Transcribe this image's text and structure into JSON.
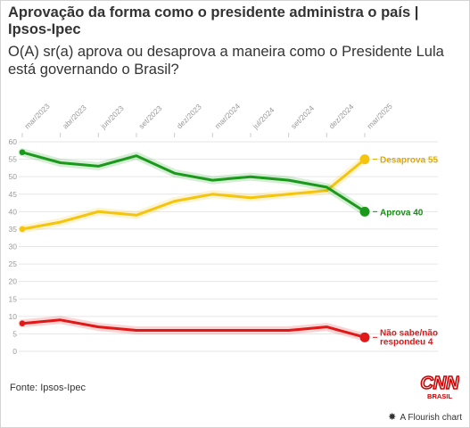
{
  "title": "Aprovação da forma como o presidente administra o país | Ipsos-Ipec",
  "subtitle": "O(A) sr(a) aprova ou desaprova a maneira como o Presidente Lula está governando o Brasil?",
  "source": "Fonte: Ipsos-Ipec",
  "logo": {
    "text": "CNN",
    "sub": "BRASIL",
    "color": "#cc0000"
  },
  "credit": {
    "mark": "✸",
    "text": "A Flourish chart"
  },
  "chart_data": {
    "type": "line",
    "x_labels": [
      "mar/2023",
      "abr/2023",
      "jun/2023",
      "set/2023",
      "dez/2023",
      "mar/2024",
      "jul/2024",
      "set/2024",
      "dez/2024",
      "mar/2025"
    ],
    "x_all": [
      "mar/2023",
      "abr/2023",
      "jun/2023",
      "set/2023",
      "dez/2023",
      "mar/2024",
      "jul/2024",
      "set/2024",
      "dez/2024",
      "mar/2025"
    ],
    "ylim": [
      0,
      60
    ],
    "yticks": [
      0,
      5,
      10,
      15,
      20,
      25,
      30,
      35,
      40,
      45,
      50,
      55,
      60
    ],
    "grid": true,
    "series": [
      {
        "name": "Desaprova",
        "label": "Desaprova 55",
        "color": "#f5c40d",
        "label_color": "#e0a800",
        "values": [
          35,
          37,
          40,
          39,
          43,
          45,
          44,
          45,
          46,
          55
        ]
      },
      {
        "name": "Aprova",
        "label": "Aprova 40",
        "color": "#1a9a1a",
        "label_color": "#1a8a1a",
        "values": [
          57,
          54,
          53,
          56,
          51,
          49,
          50,
          49,
          47,
          40
        ]
      },
      {
        "name": "Não sabe/não respondeu",
        "label": "Não sabe/não|respondeu 4",
        "color": "#e01818",
        "label_color": "#e01818",
        "values": [
          8,
          9,
          7,
          6,
          6,
          6,
          6,
          6,
          7,
          4
        ]
      }
    ]
  }
}
